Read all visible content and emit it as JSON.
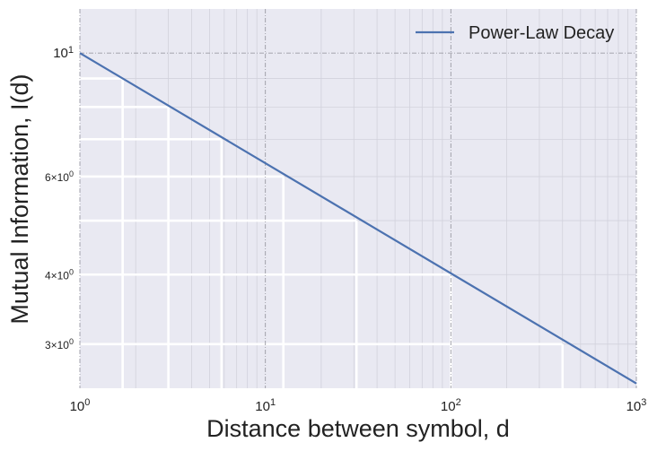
{
  "chart_data": {
    "type": "line",
    "xlabel": "Distance between symbol, d",
    "ylabel": "Mutual Information, I(d)",
    "xscale": "log",
    "yscale": "log",
    "xlim": [
      1,
      1000
    ],
    "ylim": [
      2.5,
      12
    ],
    "x_ticks": [
      {
        "value": 1,
        "base": "10",
        "exp": "0"
      },
      {
        "value": 10,
        "base": "10",
        "exp": "1"
      },
      {
        "value": 100,
        "base": "10",
        "exp": "2"
      },
      {
        "value": 1000,
        "base": "10",
        "exp": "3"
      }
    ],
    "y_ticks": [
      {
        "value": 3,
        "mant": "3",
        "base": "10",
        "exp": "0"
      },
      {
        "value": 4,
        "mant": "4",
        "base": "10",
        "exp": "0"
      },
      {
        "value": 6,
        "mant": "6",
        "base": "10",
        "exp": "0"
      },
      {
        "value": 10,
        "mant": "",
        "base": "10",
        "exp": "1"
      }
    ],
    "grid": true,
    "background": "#e9e9f2",
    "legend": {
      "position": "top-right"
    },
    "series": [
      {
        "name": "Power-Law Decay",
        "color": "#4c72b0",
        "x": [
          1,
          1000
        ],
        "y": [
          10,
          2.55
        ]
      }
    ],
    "white_step_lines": [
      {
        "x": 1.7,
        "y": 9.0
      },
      {
        "x": 3.0,
        "y": 8.0
      },
      {
        "x": 5.8,
        "y": 7.0
      },
      {
        "x": 12.5,
        "y": 6.0
      },
      {
        "x": 31.0,
        "y": 5.0
      },
      {
        "x": 100.0,
        "y": 4.0
      },
      {
        "x": 400.0,
        "y": 3.0
      }
    ]
  }
}
